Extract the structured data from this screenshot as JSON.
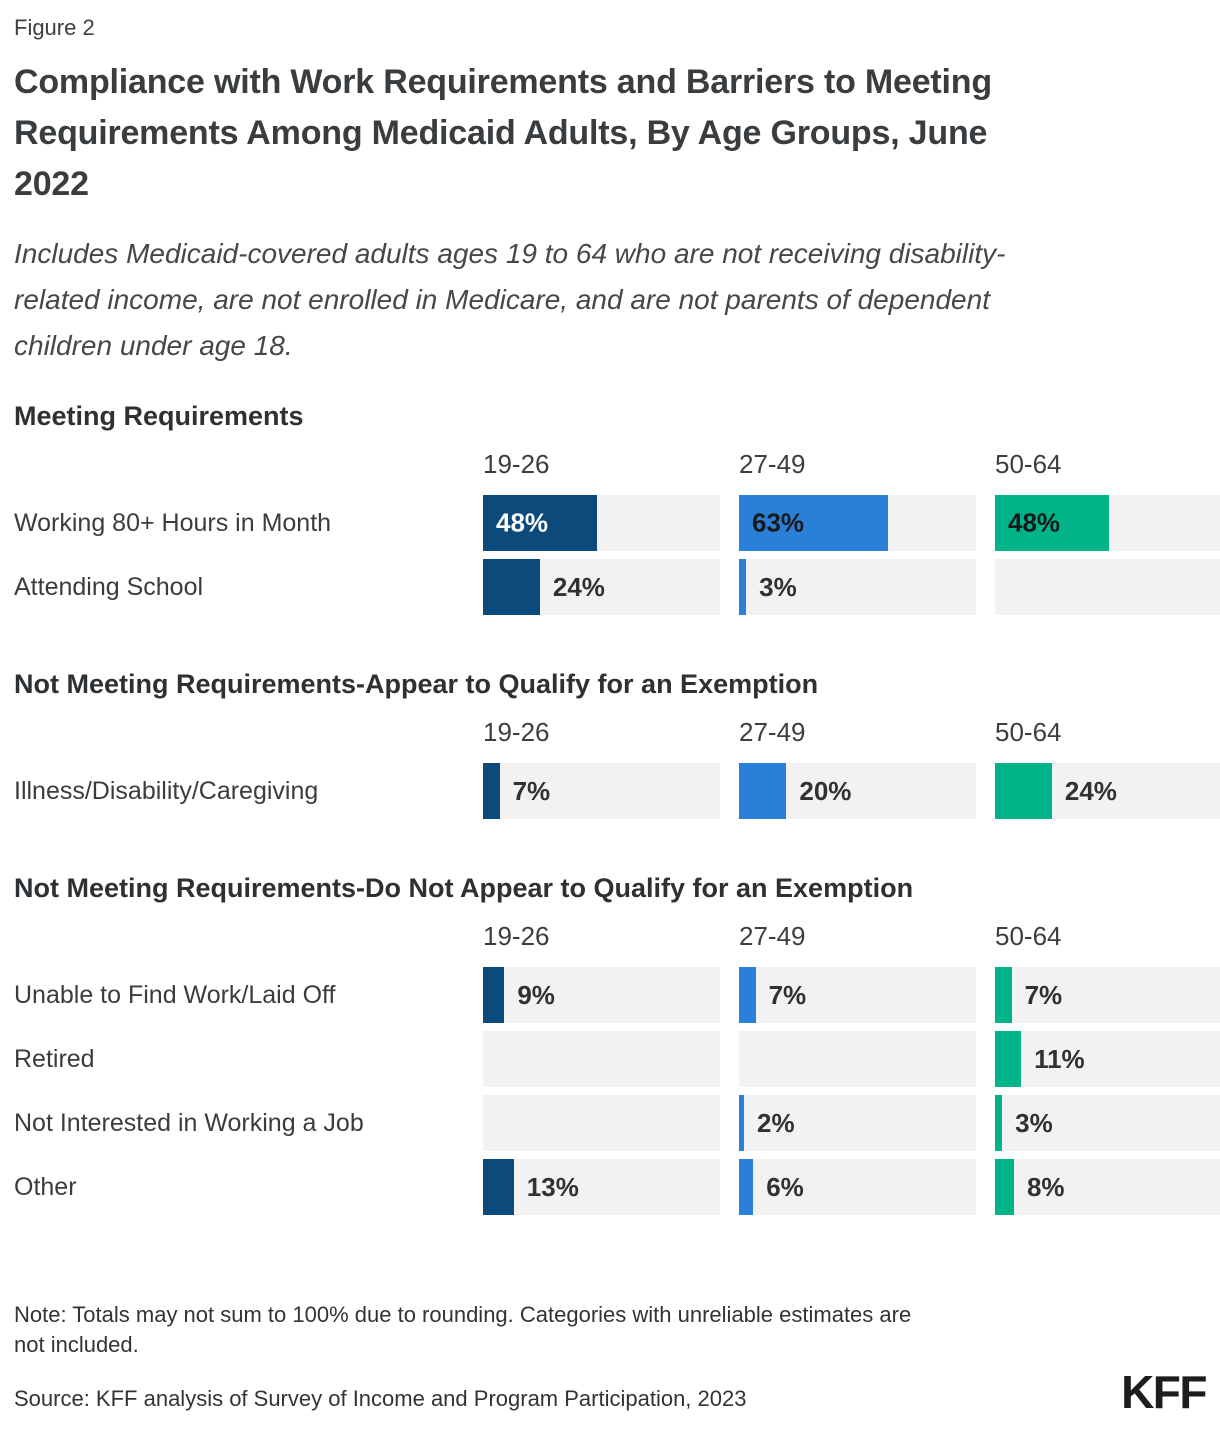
{
  "figure_label": "Figure 2",
  "title_lines": [
    "Compliance with Work Requirements and Barriers to Meeting",
    "Requirements Among Medicaid Adults, By Age Groups, June",
    "2022"
  ],
  "subtitle_lines": [
    "Includes Medicaid-covered adults ages 19 to 64 who are not receiving disability-",
    "related income, are not enrolled in Medicare, and are not parents of dependent",
    "children under age 18."
  ],
  "chart_data": {
    "type": "bar",
    "orientation": "horizontal",
    "value_unit": "%",
    "value_range": [
      0,
      100
    ],
    "age_group_columns": [
      "19-26",
      "27-49",
      "50-64"
    ],
    "series_colors": [
      "#0c4a7c",
      "#2a80d8",
      "#00b388"
    ],
    "track_color": "#f2f2f2",
    "sections": [
      {
        "header": "Meeting Requirements",
        "rows": [
          {
            "label": "Working 80+ Hours in Month",
            "values": [
              48,
              63,
              48
            ]
          },
          {
            "label": "Attending School",
            "values": [
              24,
              3,
              null
            ]
          }
        ]
      },
      {
        "header": "Not Meeting Requirements-Appear to Qualify for an Exemption",
        "rows": [
          {
            "label": "Illness/Disability/Caregiving",
            "values": [
              7,
              20,
              24
            ]
          }
        ]
      },
      {
        "header": "Not Meeting Requirements-Do Not Appear to Qualify for an Exemption",
        "rows": [
          {
            "label": "Unable to Find Work/Laid Off",
            "values": [
              9,
              7,
              7
            ]
          },
          {
            "label": "Retired",
            "values": [
              null,
              null,
              11
            ]
          },
          {
            "label": "Not Interested in Working a Job",
            "values": [
              null,
              2,
              3
            ]
          },
          {
            "label": "Other",
            "values": [
              13,
              6,
              8
            ]
          }
        ]
      }
    ]
  },
  "note_lines": [
    "Note: Totals may not sum to 100% due to rounding. Categories with unreliable estimates are",
    "not included."
  ],
  "source": "Source: KFF analysis of Survey of Income and Program Participation, 2023",
  "logo_text": "KFF"
}
